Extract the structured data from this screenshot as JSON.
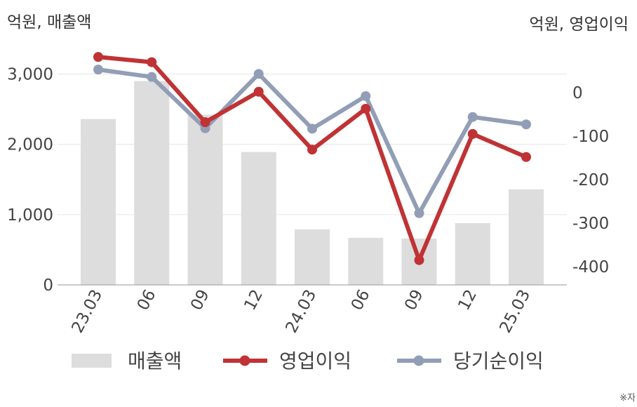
{
  "chart_data": {
    "type": "bar+line",
    "unit_left": "억원, 매출액",
    "unit_right": "억원, 영업이익",
    "categories": [
      "23.03",
      "06",
      "09",
      "12",
      "24.03",
      "06",
      "09",
      "12",
      "25.03"
    ],
    "bar_series": {
      "name": "매출액",
      "axis": "left",
      "color": "#dddddd",
      "values": [
        2360,
        2900,
        2420,
        1890,
        790,
        670,
        660,
        880,
        1360
      ]
    },
    "line_series": [
      {
        "name": "영업이익",
        "axis": "right",
        "color": "#c03234",
        "values": [
          82,
          70,
          -68,
          2,
          -131,
          -37,
          -385,
          -95,
          -148
        ]
      },
      {
        "name": "당기순이익",
        "axis": "right",
        "color": "#929eb6",
        "values": [
          53,
          36,
          -82,
          43,
          -83,
          -8,
          -277,
          -56,
          -73
        ]
      }
    ],
    "y_left": {
      "min": 0,
      "max": 3000,
      "ticks": [
        "0",
        "1,000",
        "2,000",
        "3,000"
      ]
    },
    "y_right": {
      "min": -450,
      "max": 80,
      "ticks": [
        "0",
        "-100",
        "-200",
        "-300",
        "-400"
      ]
    },
    "grid": true,
    "legend": "bottom"
  },
  "footnote": "※자"
}
